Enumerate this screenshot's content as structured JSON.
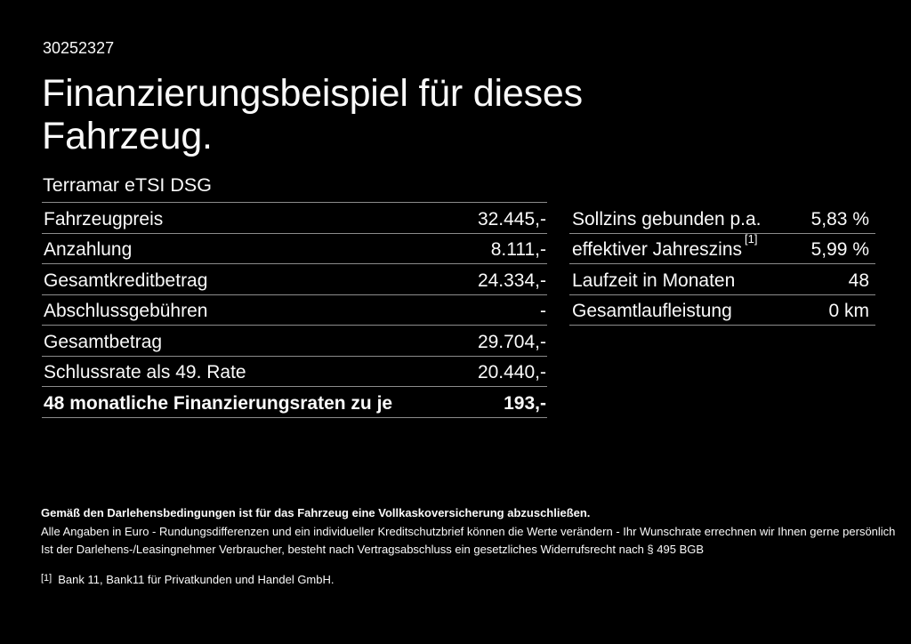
{
  "meta": {
    "background_color": "#000000",
    "text_color": "#fafafa",
    "divider_color": "#8c8c8c"
  },
  "header": {
    "reference_number": "30252327",
    "title_line1": "Finanzierungsbeispiel für dieses",
    "title_line2": "Fahrzeug.",
    "vehicle_model": "Terramar eTSI DSG"
  },
  "finance_table": {
    "rows": [
      {
        "label": "Fahrzeugpreis",
        "value": "32.445,-",
        "bold": false
      },
      {
        "label": "Anzahlung",
        "value": "8.111,-",
        "bold": false
      },
      {
        "label": "Gesamtkreditbetrag",
        "value": "24.334,-",
        "bold": false
      },
      {
        "label": "Abschlussgebühren",
        "value": "-",
        "bold": false
      },
      {
        "label": "Gesamtbetrag",
        "value": "29.704,-",
        "bold": false
      },
      {
        "label": "Schlussrate als 49. Rate",
        "value": "20.440,-",
        "bold": false
      },
      {
        "label": "48 monatliche Finanzierungsraten zu je",
        "value": "193,-",
        "bold": true
      }
    ]
  },
  "conditions_table": {
    "rows": [
      {
        "label": "Sollzins gebunden p.a.",
        "sup": "",
        "value": "5,83 %"
      },
      {
        "label": "effektiver Jahreszins",
        "sup": "[1]",
        "value": "5,99 %"
      },
      {
        "label": "Laufzeit in Monaten",
        "sup": "",
        "value": "48"
      },
      {
        "label": "Gesamtlaufleistung",
        "sup": "",
        "value": "0 km"
      }
    ]
  },
  "footer": {
    "insurance_note": "Gemäß den Darlehensbedingungen ist für das Fahrzeug eine Vollkaskoversicherung abzuschließen.",
    "disclaimer_line1": "Alle Angaben in Euro - Rundungsdifferenzen und ein individueller Kreditschutzbrief können die Werte verändern - Ihr Wunschrate errechnen wir Ihnen gerne persönlich",
    "disclaimer_line2": "Ist der Darlehens-/Leasingnehmer Verbraucher, besteht nach Vertragsabschluss ein gesetzliches Widerrufsrecht nach § 495 BGB",
    "footnote_marker": "[1]",
    "footnote_text": "Bank 11, Bank11 für Privatkunden und Handel GmbH."
  }
}
